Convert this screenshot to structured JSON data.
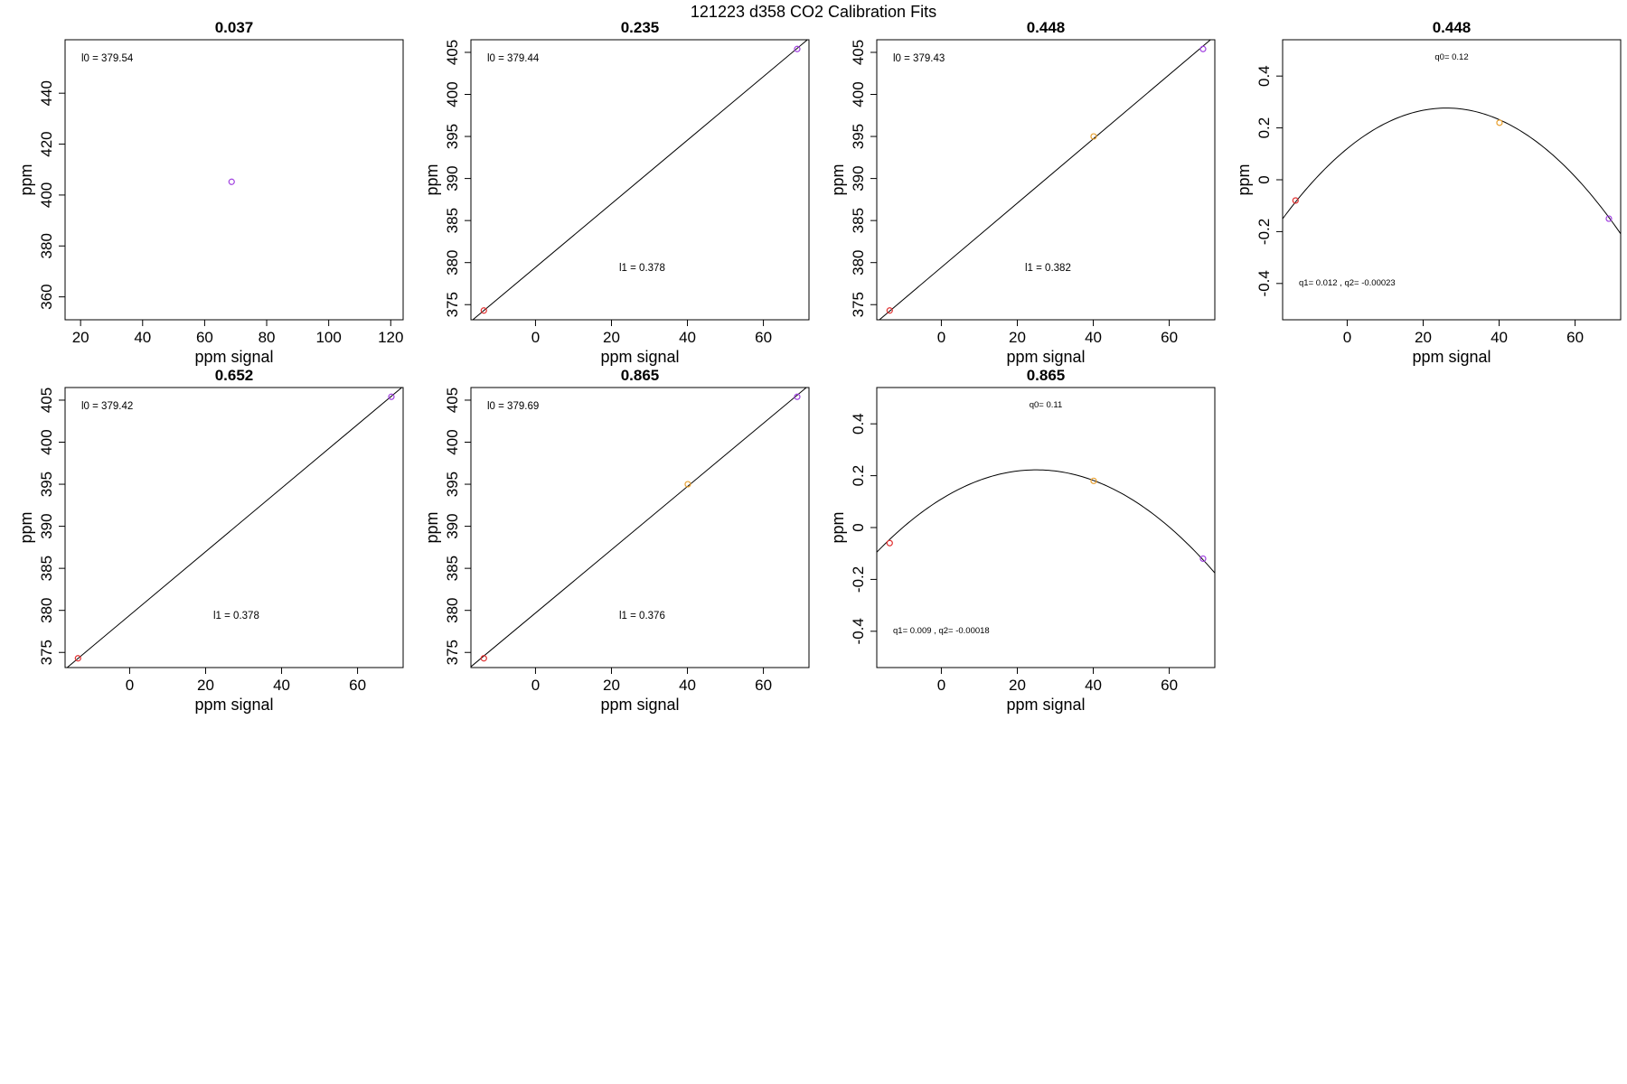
{
  "figure": {
    "title": "121223   d358   CO2 Calibration Fits",
    "colors": {
      "low": "#e03030",
      "mid": "#e8a030",
      "high": "#a040e0"
    }
  },
  "chart_data": [
    {
      "type": "scatter",
      "title": "0.037",
      "xlabel": "ppm signal",
      "ylabel": "ppm",
      "xlim": [
        15,
        124
      ],
      "ylim": [
        351,
        461
      ],
      "xticks": [
        20,
        40,
        60,
        80,
        100,
        120
      ],
      "yticks": [
        360,
        380,
        400,
        420,
        440
      ],
      "points": [
        {
          "x": 68.7,
          "y": 405.2,
          "color": "high"
        }
      ],
      "fit": null,
      "annotations": [
        {
          "text": "l0 =  379.54"
        }
      ]
    },
    {
      "type": "scatter",
      "title": "0.235",
      "xlabel": "ppm signal",
      "ylabel": "ppm",
      "xlim": [
        -17,
        72
      ],
      "ylim": [
        373.2,
        406.5
      ],
      "xticks": [
        0,
        20,
        40,
        60
      ],
      "yticks": [
        375,
        380,
        385,
        390,
        395,
        400,
        405
      ],
      "points": [
        {
          "x": -13.6,
          "y": 374.3,
          "color": "low"
        },
        {
          "x": 68.9,
          "y": 405.4,
          "color": "high"
        }
      ],
      "fit": {
        "kind": "linear",
        "intercept": 379.44,
        "slope": 0.378
      },
      "annotations": [
        {
          "text": "l0 =  379.44"
        },
        {
          "text": "l1 =  0.378"
        }
      ]
    },
    {
      "type": "scatter",
      "title": "0.448",
      "xlabel": "ppm signal",
      "ylabel": "ppm",
      "xlim": [
        -17,
        72
      ],
      "ylim": [
        373.2,
        406.5
      ],
      "xticks": [
        0,
        20,
        40,
        60
      ],
      "yticks": [
        375,
        380,
        385,
        390,
        395,
        400,
        405
      ],
      "points": [
        {
          "x": -13.6,
          "y": 374.3,
          "color": "low"
        },
        {
          "x": 40.1,
          "y": 395.0,
          "color": "mid"
        },
        {
          "x": 68.9,
          "y": 405.4,
          "color": "high"
        }
      ],
      "fit": {
        "kind": "linear",
        "intercept": 379.43,
        "slope": 0.382
      },
      "annotations": [
        {
          "text": "l0 =  379.43"
        },
        {
          "text": "l1 =  0.382"
        }
      ]
    },
    {
      "type": "scatter",
      "title": "0.448",
      "xlabel": "ppm signal",
      "ylabel": "ppm",
      "xlim": [
        -17,
        72
      ],
      "ylim": [
        -0.54,
        0.54
      ],
      "xticks": [
        0,
        20,
        40,
        60
      ],
      "yticks": [
        -0.4,
        -0.2,
        0.0,
        0.2,
        0.4
      ],
      "points": [
        {
          "x": -13.6,
          "y": -0.08,
          "color": "low"
        },
        {
          "x": 40.1,
          "y": 0.22,
          "color": "mid"
        },
        {
          "x": 68.9,
          "y": -0.15,
          "color": "high"
        }
      ],
      "fit": {
        "kind": "quadratic",
        "q0": 0.12,
        "q1": 0.012,
        "q2": -0.00023
      },
      "annotations": [
        {
          "text": "q0= 0.12"
        },
        {
          "text": "q1= 0.012 , q2= -0.00023"
        }
      ]
    },
    {
      "type": "scatter",
      "title": "0.652",
      "xlabel": "ppm signal",
      "ylabel": "ppm",
      "xlim": [
        -17,
        72
      ],
      "ylim": [
        373.2,
        406.5
      ],
      "xticks": [
        0,
        20,
        40,
        60
      ],
      "yticks": [
        375,
        380,
        385,
        390,
        395,
        400,
        405
      ],
      "points": [
        {
          "x": -13.6,
          "y": 374.3,
          "color": "low"
        },
        {
          "x": 68.9,
          "y": 405.4,
          "color": "high"
        }
      ],
      "fit": {
        "kind": "linear",
        "intercept": 379.42,
        "slope": 0.378
      },
      "annotations": [
        {
          "text": "l0 =  379.42"
        },
        {
          "text": "l1 =  0.378"
        }
      ]
    },
    {
      "type": "scatter",
      "title": "0.865",
      "xlabel": "ppm signal",
      "ylabel": "ppm",
      "xlim": [
        -17,
        72
      ],
      "ylim": [
        373.2,
        406.5
      ],
      "xticks": [
        0,
        20,
        40,
        60
      ],
      "yticks": [
        375,
        380,
        385,
        390,
        395,
        400,
        405
      ],
      "points": [
        {
          "x": -13.6,
          "y": 374.3,
          "color": "low"
        },
        {
          "x": 40.1,
          "y": 395.0,
          "color": "mid"
        },
        {
          "x": 68.9,
          "y": 405.4,
          "color": "high"
        }
      ],
      "fit": {
        "kind": "linear",
        "intercept": 379.69,
        "slope": 0.376
      },
      "annotations": [
        {
          "text": "l0 =  379.69"
        },
        {
          "text": "l1 =  0.376"
        }
      ]
    },
    {
      "type": "scatter",
      "title": "0.865",
      "xlabel": "ppm signal",
      "ylabel": "ppm",
      "xlim": [
        -17,
        72
      ],
      "ylim": [
        -0.54,
        0.54
      ],
      "xticks": [
        0,
        20,
        40,
        60
      ],
      "yticks": [
        -0.4,
        -0.2,
        0.0,
        0.2,
        0.4
      ],
      "points": [
        {
          "x": -13.6,
          "y": -0.06,
          "color": "low"
        },
        {
          "x": 40.1,
          "y": 0.18,
          "color": "mid"
        },
        {
          "x": 68.9,
          "y": -0.12,
          "color": "high"
        }
      ],
      "fit": {
        "kind": "quadratic",
        "q0": 0.11,
        "q1": 0.009,
        "q2": -0.00018
      },
      "annotations": [
        {
          "text": "q0= 0.11"
        },
        {
          "text": "q1= 0.009 , q2= -0.00018"
        }
      ]
    }
  ]
}
